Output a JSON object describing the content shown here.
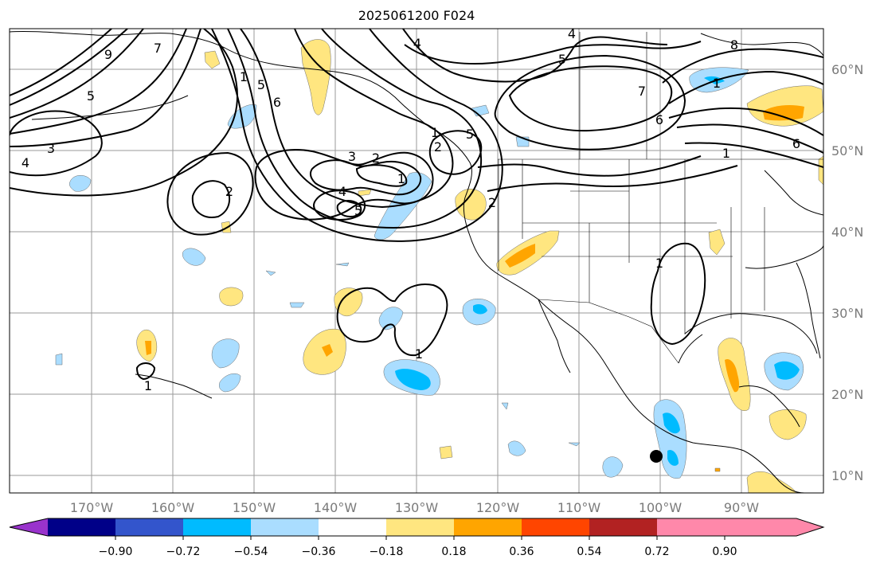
{
  "map": {
    "title": "2025061200 F024",
    "longitude_labels": [
      "170°W",
      "160°W",
      "150°W",
      "140°W",
      "130°W",
      "120°W",
      "110°W",
      "100°W",
      "90°W"
    ],
    "latitude_labels": [
      "60°N",
      "50°N",
      "40°N",
      "30°N",
      "20°N",
      "10°N"
    ],
    "gridlines": true,
    "contour_color": "#000000",
    "marker": {
      "type": "filled-circle",
      "color": "#000000"
    },
    "contour_labels": [
      "9",
      "7",
      "5",
      "4",
      "3",
      "2",
      "1",
      "6",
      "5",
      "4",
      "3",
      "2",
      "1",
      "5",
      "2",
      "4",
      "5",
      "2",
      "1",
      "1",
      "1",
      "4",
      "5",
      "7",
      "6",
      "8",
      "1",
      "6",
      "1",
      "1"
    ]
  },
  "colorbar": {
    "orientation": "horizontal",
    "extend": "both",
    "colors": [
      "#9933cc",
      "#000088",
      "#3355cc",
      "#00bbff",
      "#aaddff",
      "#ffffff",
      "#ffe680",
      "#ffa500",
      "#ff4500",
      "#b22222",
      "#ff88aa"
    ],
    "tick_labels": [
      "−0.90",
      "−0.72",
      "−0.54",
      "−0.36",
      "−0.18",
      "0.18",
      "0.36",
      "0.54",
      "0.72",
      "0.90"
    ]
  }
}
